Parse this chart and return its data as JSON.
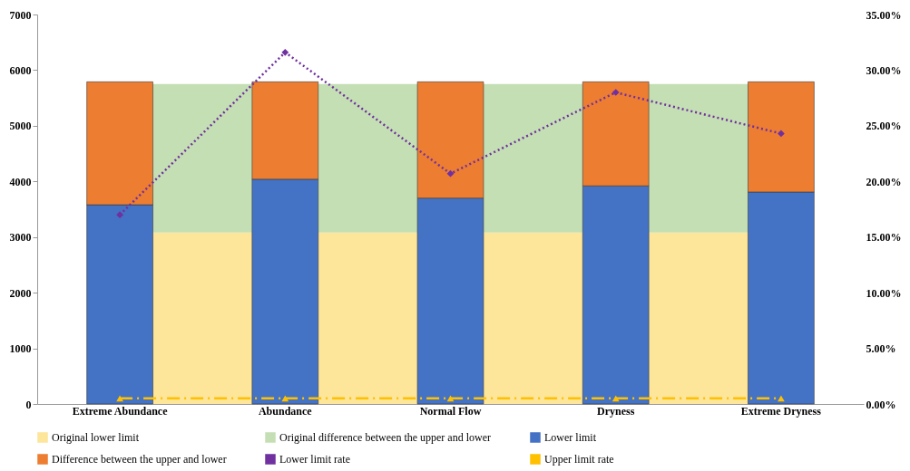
{
  "chart_data": {
    "type": "bar",
    "stacked": true,
    "categories": [
      "Extreme Abundance",
      "Abundance",
      "Normal Flow",
      "Dryness",
      "Extreme Dryness"
    ],
    "bands": [
      {
        "axis": "y",
        "from": 0,
        "to": 3080,
        "label": "Original lower limit",
        "color": "#fde59a"
      },
      {
        "axis": "y",
        "from": 3080,
        "to": 5750,
        "label": "Original difference between the upper and lower",
        "color": "#c5dfb4"
      }
    ],
    "series": [
      {
        "name": "Lower limit",
        "color": "#4472c4",
        "values": [
          3580,
          4040,
          3700,
          3920,
          3810
        ]
      },
      {
        "name": "Difference between the upper and lower",
        "color": "#ed7d31",
        "values": [
          2210,
          1750,
          2090,
          1870,
          1980
        ]
      },
      {
        "name": "Lower limit rate",
        "type": "line",
        "axis": "y2",
        "color": "#7030a0",
        "marker": "diamond",
        "line_style": "dotted",
        "values": [
          17.0,
          31.6,
          20.7,
          28.0,
          24.3
        ]
      },
      {
        "name": "Upper limit rate",
        "type": "line",
        "axis": "y2",
        "color": "#ffc000",
        "marker": "triangle",
        "line_style": "dashed",
        "values": [
          0.5,
          0.5,
          0.5,
          0.5,
          0.5
        ]
      }
    ],
    "ylim": [
      0,
      7000
    ],
    "yticks": [
      0,
      1000,
      2000,
      3000,
      4000,
      5000,
      6000,
      7000
    ],
    "y2lim": [
      0,
      35
    ],
    "y2ticks": [
      {
        "value": 0,
        "label": "0.00%"
      },
      {
        "value": 5,
        "label": "5.00%"
      },
      {
        "value": 10,
        "label": "10.00%"
      },
      {
        "value": 15,
        "label": "15.00%"
      },
      {
        "value": 20,
        "label": "20.00%"
      },
      {
        "value": 25,
        "label": "25.00%"
      },
      {
        "value": 30,
        "label": "30.00%"
      },
      {
        "value": 35,
        "label": "35.00%"
      }
    ],
    "grid": false,
    "legend": "bottom"
  }
}
